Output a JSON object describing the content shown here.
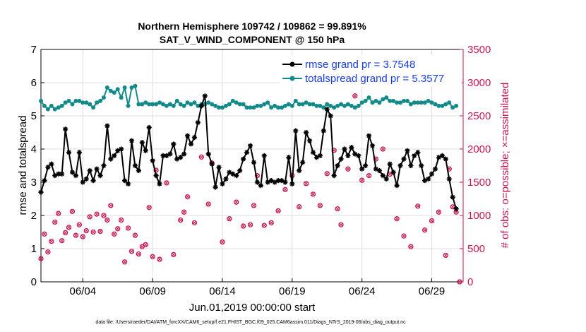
{
  "colors": {
    "rmse": "#000000",
    "spread": "#138a8a",
    "obs": "#c8144f",
    "grid": "#dddddd",
    "legend_text": "#1a3ee6"
  },
  "chart_data": {
    "type": "line",
    "title": "Northern Hemisphere 109742 / 109862 = 99.891%",
    "subtitle": "SAT_V_WIND_COMPONENT @ 150 hPa",
    "xlabel": "Jun.01,2019 00:00:00 start",
    "ylabel": "rmse and totalspread",
    "ylabel_right": "# of obs: o=possible; ×=assimilated",
    "footer": "data file: /Users/raeder/DAI/ATM_forcXX/CAM6_setup/f.e21.FHIST_BGC.f09_025.CAM6assim.011/Diags_NTrS_2019-06/obs_diag_output.nc",
    "xlim": [
      1,
      31.25
    ],
    "ylim": [
      0,
      7
    ],
    "ylim_right": [
      0,
      3500
    ],
    "x_ticks": [
      4,
      9,
      14,
      19,
      24,
      29
    ],
    "x_tick_labels": [
      "06/04",
      "06/09",
      "06/14",
      "06/19",
      "06/24",
      "06/29"
    ],
    "y_ticks": [
      0,
      1,
      2,
      3,
      4,
      5,
      6,
      7
    ],
    "y_tick_labels": [
      "0",
      "1",
      "2",
      "3",
      "4",
      "5",
      "6",
      "7"
    ],
    "y_ticks_right": [
      0,
      500,
      1000,
      1500,
      2000,
      2500,
      3000,
      3500
    ],
    "y_tick_labels_right": [
      "0",
      "500",
      "1000",
      "1500",
      "2000",
      "2500",
      "3000",
      "3500"
    ],
    "x_step_days": 0.25,
    "series": [
      {
        "name": "rmse grand pr = 3.7548",
        "axis": "left",
        "values": [
          2.7,
          3.05,
          3.45,
          3.55,
          3.2,
          3.25,
          3.25,
          4.6,
          3.9,
          3.3,
          3.2,
          3.9,
          3.0,
          3.1,
          3.35,
          3.05,
          3.4,
          3.2,
          3.5,
          4.7,
          3.7,
          3.8,
          3.95,
          4.0,
          3.05,
          2.95,
          4.25,
          3.5,
          3.35,
          4.2,
          3.95,
          4.65,
          3.65,
          3.2,
          2.95,
          3.8,
          3.8,
          3.85,
          4.15,
          3.7,
          3.75,
          3.85,
          4.4,
          4.15,
          4.35,
          4.8,
          5.3,
          5.6,
          3.85,
          3.55,
          2.85,
          3.45,
          2.95,
          3.1,
          3.3,
          3.25,
          3.2,
          3.35,
          3.7,
          3.9,
          4.1,
          3.6,
          3.0,
          2.9,
          3.8,
          3.0,
          3.05,
          3.0,
          3.05,
          3.05,
          3.0,
          3.75,
          2.95,
          4.55,
          3.35,
          3.6,
          4.5,
          4.25,
          3.9,
          3.75,
          3.8,
          4.55,
          5.2,
          5.0,
          3.2,
          3.5,
          3.7,
          4.0,
          3.8,
          4.05,
          3.85,
          3.8,
          3.4,
          3.5,
          4.4,
          4.1,
          3.4,
          3.35,
          3.2,
          3.1,
          3.55,
          3.3,
          2.9,
          3.5,
          3.7,
          3.95,
          3.5,
          3.8,
          3.9,
          3.5,
          3.05,
          3.1,
          3.25,
          3.4,
          3.75,
          3.8,
          3.7,
          3.1,
          2.55,
          2.2
        ]
      },
      {
        "name": "totalspread grand pr = 5.3577",
        "axis": "left",
        "values": [
          5.45,
          5.3,
          5.2,
          5.3,
          5.2,
          5.25,
          5.3,
          5.4,
          5.45,
          5.35,
          5.45,
          5.45,
          5.4,
          5.4,
          5.35,
          5.25,
          5.4,
          5.45,
          5.55,
          5.85,
          5.75,
          5.7,
          5.8,
          5.55,
          5.85,
          5.3,
          5.85,
          5.9,
          5.35,
          5.35,
          5.4,
          5.35,
          5.35,
          5.35,
          5.4,
          5.35,
          5.3,
          5.35,
          5.3,
          5.45,
          5.35,
          5.3,
          5.4,
          5.35,
          5.4,
          5.3,
          5.35,
          5.35,
          5.4,
          5.35,
          5.3,
          5.25,
          5.25,
          5.3,
          5.35,
          5.45,
          5.4,
          5.35,
          5.35,
          5.25,
          5.25,
          5.25,
          5.3,
          5.3,
          5.35,
          5.4,
          5.25,
          5.3,
          5.25,
          5.25,
          5.3,
          5.35,
          5.3,
          5.45,
          5.35,
          5.35,
          5.4,
          5.35,
          5.35,
          5.3,
          5.3,
          5.25,
          5.35,
          5.3,
          5.25,
          5.3,
          5.35,
          5.3,
          5.35,
          5.3,
          5.25,
          5.3,
          5.4,
          5.45,
          5.55,
          5.4,
          5.45,
          5.4,
          5.5,
          5.55,
          5.45,
          5.45,
          5.4,
          5.4,
          5.45,
          5.45,
          5.35,
          5.4,
          5.4,
          5.4,
          5.4,
          5.45,
          5.4,
          5.35,
          5.3,
          5.3,
          5.35,
          5.4,
          5.25,
          5.3
        ]
      },
      {
        "name": "# of obs",
        "axis": "right",
        "x": [
          1,
          1.25,
          1.5,
          1.75,
          2,
          2.25,
          2.5,
          2.75,
          3,
          3.25,
          3.5,
          3.75,
          4,
          4.25,
          4.5,
          4.75,
          5,
          5.25,
          5.5,
          5.75,
          6,
          6.25,
          6.5,
          6.75,
          7,
          7.25,
          7.5,
          7.75,
          8,
          8.25,
          8.5,
          8.75,
          9,
          9.25,
          9.5,
          10,
          10.5,
          11,
          11.25,
          11.5,
          12,
          12.5,
          13,
          13.25,
          14,
          14.5,
          15,
          15.5,
          16,
          16.25,
          16.5,
          17,
          17.5,
          18,
          18.5,
          19,
          19.5,
          20,
          20.5,
          21,
          21.5,
          22,
          22.25,
          22.5,
          23,
          23.5,
          24,
          24.5,
          25,
          25.5,
          26,
          26.5,
          27,
          27.5,
          28,
          28.5,
          29,
          29.5,
          30,
          30.25,
          30.5,
          30.75,
          31
        ],
        "values": [
          350,
          720,
          450,
          610,
          900,
          1030,
          620,
          740,
          820,
          1060,
          700,
          860,
          680,
          770,
          980,
          750,
          1020,
          760,
          1000,
          930,
          1150,
          720,
          800,
          930,
          300,
          810,
          460,
          700,
          420,
          530,
          560,
          1120,
          380,
          1680,
          340,
          1490,
          410,
          930,
          1050,
          1280,
          890,
          1880,
          1170,
          1790,
          600,
          950,
          1200,
          840,
          860,
          1150,
          1600,
          850,
          890,
          1070,
          1390,
          1600,
          1130,
          1480,
          1320,
          1150,
          1630,
          1980,
          1100,
          860,
          1700,
          2800,
          1530,
          1600,
          1850,
          2000,
          1620,
          950,
          690,
          530,
          1140,
          780,
          920,
          1050,
          400,
          1700,
          1130,
          1050,
          0
        ]
      }
    ],
    "legend_position": "top-right"
  }
}
